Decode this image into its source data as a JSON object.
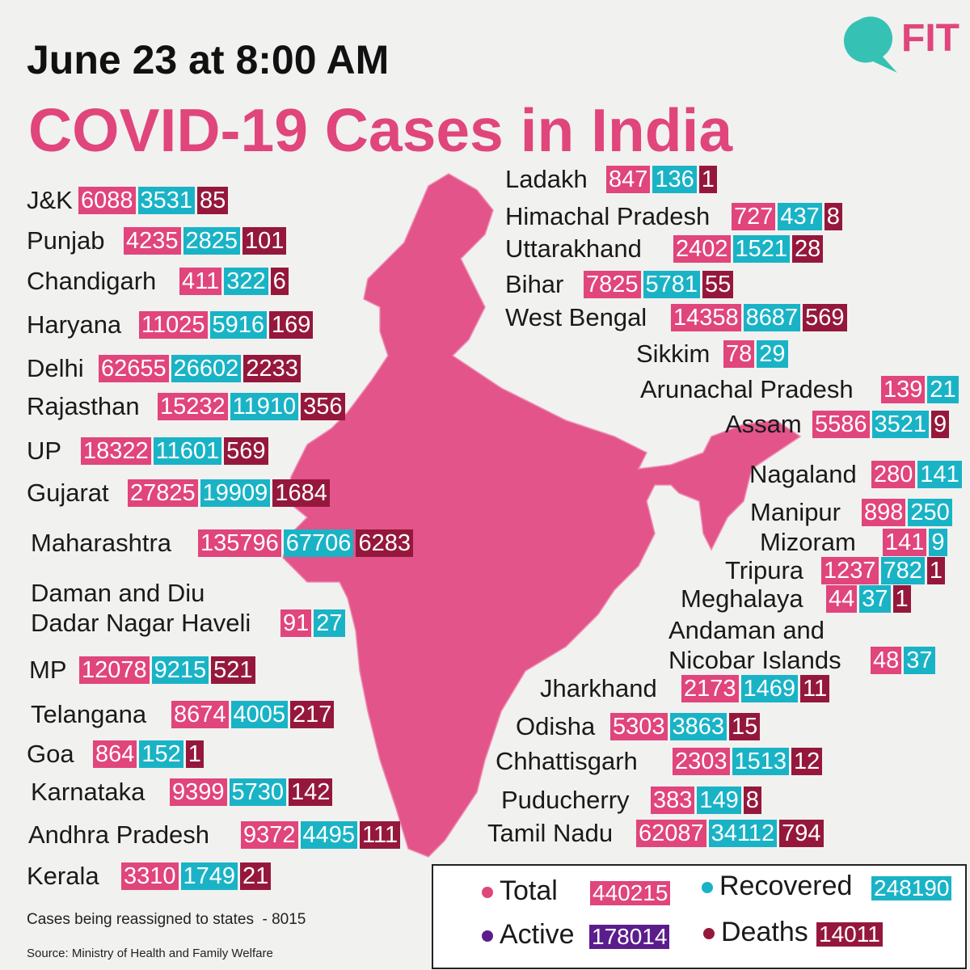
{
  "header": {
    "date": "June 23 at 8:00 AM",
    "title": "COVID-19 Cases in India",
    "logo": "FIT"
  },
  "states": [
    {
      "name": "J&K",
      "total": 6088,
      "recovered": 3531,
      "deaths": 85
    },
    {
      "name": "Punjab",
      "total": 4235,
      "recovered": 2825,
      "deaths": 101
    },
    {
      "name": "Chandigarh",
      "total": 411,
      "recovered": 322,
      "deaths": 6
    },
    {
      "name": "Haryana",
      "total": 11025,
      "recovered": 5916,
      "deaths": 169
    },
    {
      "name": "Delhi",
      "total": 62655,
      "recovered": 26602,
      "deaths": 2233
    },
    {
      "name": "Rajasthan",
      "total": 15232,
      "recovered": 11910,
      "deaths": 356
    },
    {
      "name": "UP",
      "total": 18322,
      "recovered": 11601,
      "deaths": 569
    },
    {
      "name": "Gujarat",
      "total": 27825,
      "recovered": 19909,
      "deaths": 1684
    },
    {
      "name": "Maharashtra",
      "total": 135796,
      "recovered": 67706,
      "deaths": 6283
    },
    {
      "name": [
        "Daman and Diu",
        "Dadar Nagar Haveli"
      ],
      "total": 91,
      "recovered": 27
    },
    {
      "name": "MP",
      "total": 12078,
      "recovered": 9215,
      "deaths": 521
    },
    {
      "name": "Telangana",
      "total": 8674,
      "recovered": 4005,
      "deaths": 217
    },
    {
      "name": "Goa",
      "total": 864,
      "recovered": 152,
      "deaths": 1
    },
    {
      "name": "Karnataka",
      "total": 9399,
      "recovered": 5730,
      "deaths": 142
    },
    {
      "name": "Andhra Pradesh",
      "total": 9372,
      "recovered": 4495,
      "deaths": 111
    },
    {
      "name": "Kerala",
      "total": 3310,
      "recovered": 1749,
      "deaths": 21
    },
    {
      "name": "Ladakh",
      "total": 847,
      "recovered": 136,
      "deaths": 1
    },
    {
      "name": "Himachal Pradesh",
      "total": 727,
      "recovered": 437,
      "deaths": 8
    },
    {
      "name": "Uttarakhand",
      "total": 2402,
      "recovered": 1521,
      "deaths": 28
    },
    {
      "name": "Bihar",
      "total": 7825,
      "recovered": 5781,
      "deaths": 55
    },
    {
      "name": "West Bengal",
      "total": 14358,
      "recovered": 8687,
      "deaths": 569
    },
    {
      "name": "Sikkim",
      "total": 78,
      "recovered": 29
    },
    {
      "name": "Arunachal Pradesh",
      "total": 139,
      "recovered": 21
    },
    {
      "name": "Assam",
      "total": 5586,
      "recovered": 3521,
      "deaths": 9
    },
    {
      "name": "Nagaland",
      "total": 280,
      "recovered": 141
    },
    {
      "name": "Manipur",
      "total": 898,
      "recovered": 250
    },
    {
      "name": "Mizoram",
      "total": 141,
      "recovered": 9
    },
    {
      "name": "Tripura",
      "total": 1237,
      "recovered": 782,
      "deaths": 1
    },
    {
      "name": "Meghalaya",
      "total": 44,
      "recovered": 37,
      "deaths": 1
    },
    {
      "name": [
        "Andaman and",
        "Nicobar Islands"
      ],
      "total": 48,
      "recovered": 37
    },
    {
      "name": "Jharkhand",
      "total": 2173,
      "recovered": 1469,
      "deaths": 11
    },
    {
      "name": "Odisha",
      "total": 5303,
      "recovered": 3863,
      "deaths": 15
    },
    {
      "name": "Chhattisgarh",
      "total": 2303,
      "recovered": 1513,
      "deaths": 12
    },
    {
      "name": "Puducherry",
      "total": 383,
      "recovered": 149,
      "deaths": 8
    },
    {
      "name": "Tamil Nadu",
      "total": 62087,
      "recovered": 34112,
      "deaths": 794
    }
  ],
  "legend": [
    {
      "label": "Total",
      "value": 440215
    },
    {
      "label": "Recovered",
      "value": 248190
    },
    {
      "label": "Active",
      "value": 178014
    },
    {
      "label": "Deaths",
      "value": 14011
    }
  ],
  "footer": {
    "note": "Cases being reassigned to states  - 8015",
    "source": "Source: Ministry of Health and Family Welfare"
  }
}
